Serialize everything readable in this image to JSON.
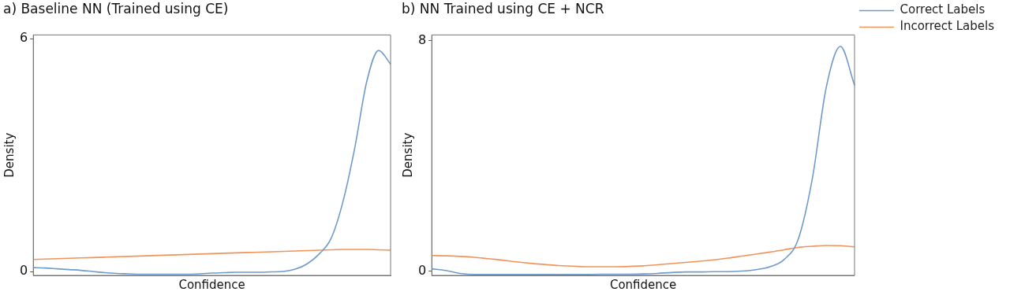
{
  "chart_data": [
    {
      "type": "line",
      "title": "a) Baseline NN (Trained using CE)",
      "xlabel": "Confidence",
      "ylabel": "Density",
      "categories": [
        null,
        null,
        null,
        null,
        null,
        null,
        null,
        null,
        null,
        null,
        null,
        null,
        null,
        null,
        null,
        null,
        null,
        null,
        null,
        null,
        null,
        null,
        null,
        null,
        null,
        null,
        null,
        null,
        null,
        null,
        null
      ],
      "series": [
        {
          "color": "#6f9bcb",
          "values": [
            0.1,
            0.09,
            0.07,
            0.05,
            0.03,
            0.0,
            -0.03,
            -0.05,
            -0.06,
            -0.07,
            -0.07,
            -0.07,
            -0.07,
            -0.07,
            -0.06,
            -0.04,
            -0.03,
            -0.02,
            -0.02,
            -0.02,
            -0.01,
            0.0,
            0.06,
            0.2,
            0.45,
            0.85,
            1.8,
            3.2,
            4.9,
            5.7,
            5.35
          ]
        },
        {
          "color": "#ef945a",
          "values": [
            0.31,
            0.32,
            0.33,
            0.34,
            0.35,
            0.36,
            0.37,
            0.38,
            0.39,
            0.4,
            0.41,
            0.42,
            0.43,
            0.44,
            0.45,
            0.46,
            0.47,
            0.48,
            0.49,
            0.5,
            0.51,
            0.52,
            0.53,
            0.54,
            0.55,
            0.56,
            0.57,
            0.57,
            0.57,
            0.56,
            0.55
          ]
        }
      ],
      "ylim": [
        -0.1,
        6.1
      ],
      "yticks": [
        0,
        6
      ],
      "tick_labels": "y",
      "grid": false,
      "legend": false,
      "marker": "none"
    },
    {
      "type": "line",
      "title": "b) NN Trained using CE + NCR",
      "xlabel": "Confidence",
      "ylabel": "Density",
      "categories": [
        null,
        null,
        null,
        null,
        null,
        null,
        null,
        null,
        null,
        null,
        null,
        null,
        null,
        null,
        null,
        null,
        null,
        null,
        null,
        null,
        null,
        null,
        null,
        null,
        null,
        null,
        null,
        null,
        null,
        null,
        null
      ],
      "series": [
        {
          "name": "Correct Labels",
          "color": "#6f9bcb",
          "values": [
            0.08,
            0.02,
            -0.08,
            -0.12,
            -0.12,
            -0.12,
            -0.12,
            -0.12,
            -0.12,
            -0.12,
            -0.12,
            -0.12,
            -0.11,
            -0.11,
            -0.11,
            -0.1,
            -0.08,
            -0.05,
            -0.03,
            -0.03,
            -0.02,
            -0.02,
            0.0,
            0.05,
            0.15,
            0.4,
            1.1,
            3.2,
            6.4,
            7.8,
            6.45
          ]
        },
        {
          "name": "Incorrect Labels",
          "color": "#ef945a",
          "values": [
            0.54,
            0.53,
            0.51,
            0.48,
            0.43,
            0.38,
            0.32,
            0.27,
            0.23,
            0.19,
            0.17,
            0.15,
            0.15,
            0.15,
            0.16,
            0.18,
            0.22,
            0.26,
            0.3,
            0.34,
            0.39,
            0.45,
            0.52,
            0.59,
            0.66,
            0.74,
            0.82,
            0.86,
            0.89,
            0.88,
            0.84
          ]
        }
      ],
      "ylim": [
        -0.15,
        8.2
      ],
      "yticks": [
        0,
        8
      ],
      "tick_labels": "y",
      "grid": false,
      "legend": "right",
      "marker": "none"
    }
  ]
}
